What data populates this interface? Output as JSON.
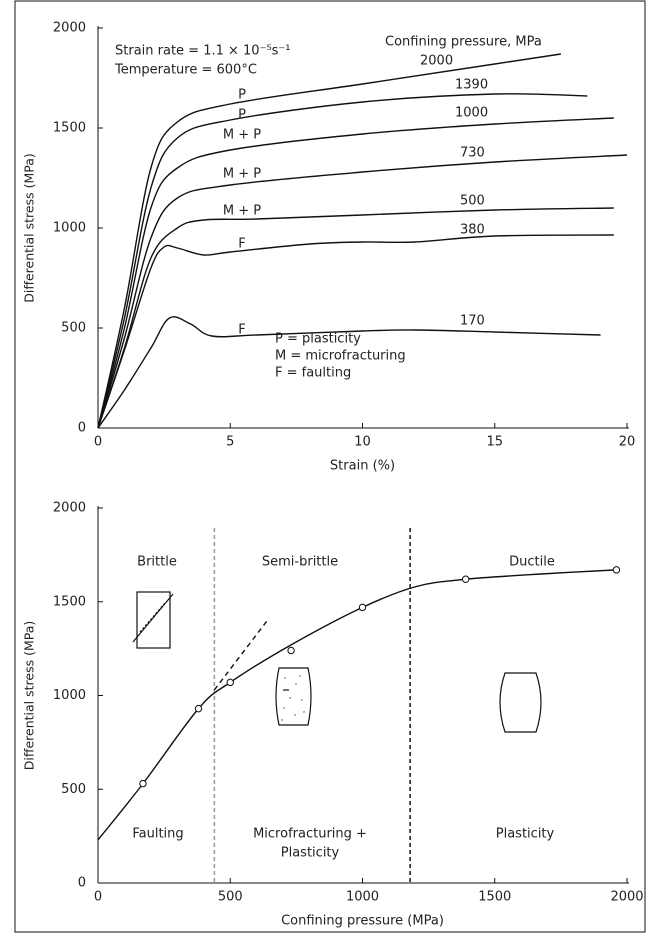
{
  "chart_data": [
    {
      "type": "line",
      "color": "#111",
      "x_label": "Strain (%)",
      "y_label": "Differential stress (MPa)",
      "xlim": [
        0,
        20
      ],
      "ylim": [
        0,
        2000
      ],
      "xticks": [
        0,
        5,
        10,
        15,
        20
      ],
      "yticks": [
        0,
        500,
        1000,
        1500,
        2000
      ],
      "grid": false,
      "annotations": [
        "Strain rate = 1.1 × 10⁻⁵s⁻¹",
        "Temperature = 600°C",
        "Confining pressure, MPa",
        "P = plasticity",
        "M = microfracturing",
        "F = faulting"
      ],
      "series": [
        {
          "name": "2000",
          "mode": "P",
          "x": [
            0,
            1,
            2,
            3,
            5,
            10,
            15,
            17.5
          ],
          "y": [
            0,
            600,
            1300,
            1530,
            1620,
            1720,
            1820,
            1870
          ]
        },
        {
          "name": "1390",
          "mode": "P",
          "x": [
            0,
            1,
            2,
            3,
            5,
            10,
            15,
            18.5
          ],
          "y": [
            0,
            550,
            1200,
            1450,
            1540,
            1630,
            1670,
            1660
          ]
        },
        {
          "name": "1000",
          "mode": "M + P",
          "x": [
            0,
            1,
            2,
            3,
            5,
            10,
            15,
            19.5
          ],
          "y": [
            0,
            500,
            1100,
            1300,
            1390,
            1470,
            1520,
            1550
          ]
        },
        {
          "name": "730",
          "mode": "M + P",
          "x": [
            0,
            1,
            2,
            3,
            5,
            10,
            15,
            20
          ],
          "y": [
            0,
            450,
            950,
            1150,
            1215,
            1280,
            1330,
            1365
          ]
        },
        {
          "name": "500",
          "mode": "M + P",
          "x": [
            0,
            1,
            2,
            3,
            4,
            6,
            10,
            15,
            19.5
          ],
          "y": [
            0,
            400,
            850,
            1000,
            1040,
            1045,
            1065,
            1090,
            1100
          ]
        },
        {
          "name": "380",
          "mode": "F",
          "x": [
            0,
            1,
            2,
            2.5,
            3,
            4,
            5,
            8,
            10,
            12,
            15,
            19.5
          ],
          "y": [
            0,
            390,
            800,
            905,
            900,
            865,
            880,
            920,
            930,
            930,
            960,
            965
          ]
        },
        {
          "name": "170",
          "mode": "F",
          "x": [
            0,
            1,
            2,
            2.7,
            3.5,
            4.3,
            6,
            10,
            12,
            15,
            19
          ],
          "y": [
            0,
            190,
            400,
            550,
            520,
            460,
            465,
            485,
            490,
            480,
            465
          ]
        }
      ]
    },
    {
      "type": "line",
      "color": "#111",
      "x_label": "Confining pressure (MPa)",
      "y_label": "Differential stress (MPa)",
      "xlim": [
        0,
        2000
      ],
      "ylim": [
        0,
        2000
      ],
      "xticks": [
        0,
        500,
        1000,
        1500,
        2000
      ],
      "yticks": [
        0,
        500,
        1000,
        1500,
        2000
      ],
      "grid": false,
      "annotations": [
        "Brittle",
        "Semi-brittle",
        "Ductile",
        "Faulting",
        "Microfracturing +",
        "Plasticity",
        "Plasticity"
      ],
      "vlines": [
        {
          "x": 440,
          "color": "#999"
        },
        {
          "x": 1180,
          "color": "#111"
        }
      ],
      "series": [
        {
          "x": [
            0,
            170,
            380,
            500,
            730,
            1000,
            1200,
            1390,
            1700,
            1960
          ],
          "y": [
            230,
            530,
            930,
            1070,
            1270,
            1470,
            1580,
            1620,
            1650,
            1670
          ],
          "style": "solid"
        },
        {
          "x": [
            440,
            640
          ],
          "y": [
            1030,
            1400
          ],
          "style": "dashed"
        },
        {
          "x": [
            170,
            380,
            500,
            730,
            1000,
            1390,
            1960
          ],
          "y": [
            530,
            930,
            1070,
            1240,
            1470,
            1620,
            1670
          ],
          "style": "markers"
        }
      ]
    }
  ]
}
